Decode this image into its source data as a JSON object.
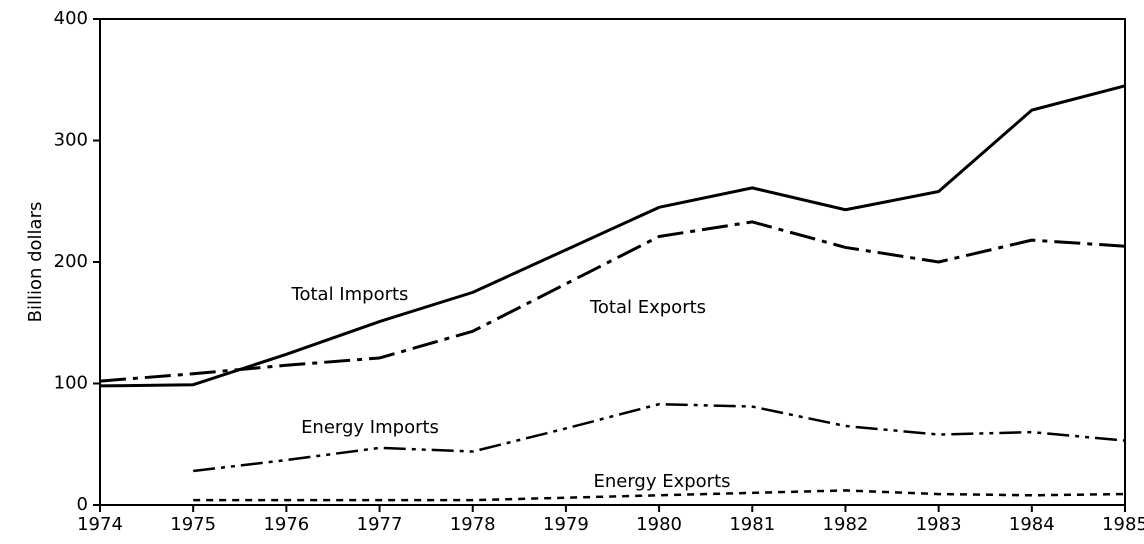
{
  "chart_data": {
    "type": "line",
    "y_label": "Billion dollars",
    "x": [
      1974,
      1975,
      1976,
      1977,
      1978,
      1979,
      1980,
      1981,
      1982,
      1983,
      1984,
      1985
    ],
    "xlim": [
      1974,
      1985
    ],
    "xticks": [
      1974,
      1975,
      1976,
      1977,
      1978,
      1979,
      1980,
      1981,
      1982,
      1983,
      1984,
      1985
    ],
    "ylim": [
      0,
      400
    ],
    "yticks": [
      0,
      100,
      200,
      300,
      400
    ],
    "grid": false,
    "legend": "inline",
    "series": [
      {
        "name": "Total Imports",
        "color": "#000000",
        "style": "solid",
        "values": [
          98,
          99,
          124,
          151,
          175,
          210,
          245,
          261,
          243,
          258,
          325,
          345
        ]
      },
      {
        "name": "Total Exports",
        "color": "#000000",
        "style": "dashdot",
        "values": [
          102,
          108,
          115,
          121,
          143,
          182,
          221,
          233,
          212,
          200,
          218,
          213
        ]
      },
      {
        "name": "Energy Imports",
        "color": "#000000",
        "style": "dashdotdot",
        "values": [
          null,
          28,
          37,
          47,
          44,
          63,
          83,
          81,
          65,
          58,
          60,
          53
        ]
      },
      {
        "name": "Energy Exports",
        "color": "#000000",
        "style": "dotted",
        "values": [
          null,
          4,
          4,
          4,
          4,
          6,
          8,
          10,
          12,
          9,
          8,
          9
        ]
      }
    ]
  }
}
